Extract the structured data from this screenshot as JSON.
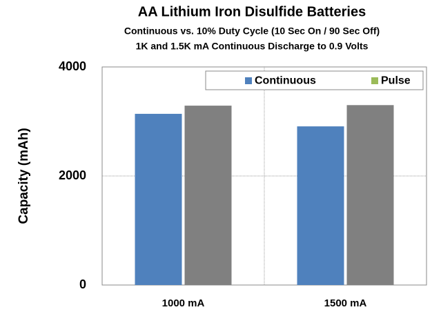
{
  "chart_data": {
    "type": "bar",
    "title": "AA Lithium Iron Disulfide Batteries",
    "subtitle": [
      "Continuous vs. 10% Duty Cycle (10 Sec On / 90 Sec Off)",
      "1K and 1.5K mA Continuous Discharge to 0.9 Volts"
    ],
    "y_label": "Capacity (mAh)",
    "categories": [
      "1000 mA",
      "1500 mA"
    ],
    "series": [
      {
        "name": "Continuous",
        "color": "#4f81bd",
        "values": [
          3140,
          2910
        ]
      },
      {
        "name": "Pulse",
        "color": "#808080",
        "legend_color": "#9bbb59",
        "values": [
          3290,
          3300
        ]
      }
    ],
    "ylim": [
      0,
      4000
    ],
    "yticks": [
      0,
      2000,
      4000
    ],
    "grid": true,
    "legend": "top-right"
  }
}
